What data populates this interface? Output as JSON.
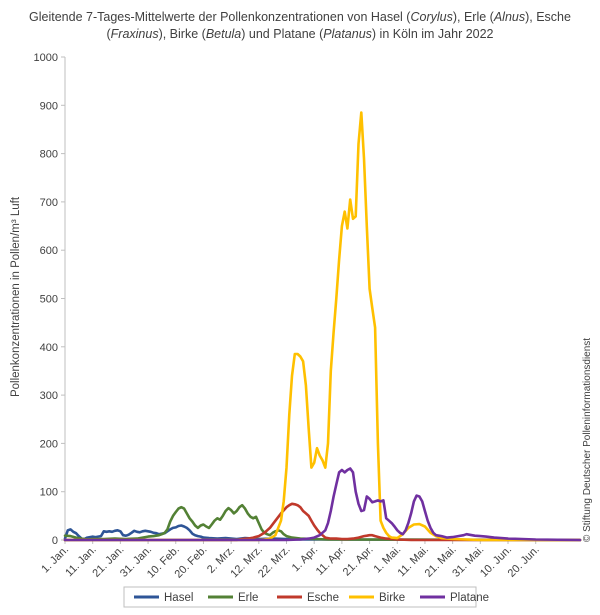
{
  "chart_data": {
    "type": "line",
    "title_lines": [
      [
        {
          "t": "Gleitende 7-Tages-Mittelwerte der Pollenkonzentrationen von Hasel (",
          "i": false
        },
        {
          "t": "Corylus",
          "i": true
        },
        {
          "t": "), Erle (",
          "i": false
        },
        {
          "t": "Alnus",
          "i": true
        },
        {
          "t": "), Esche",
          "i": false
        }
      ],
      [
        {
          "t": "(",
          "i": false
        },
        {
          "t": "Fraxinus",
          "i": true
        },
        {
          "t": "), Birke (",
          "i": false
        },
        {
          "t": "Betula",
          "i": true
        },
        {
          "t": ") und Platane (",
          "i": false
        },
        {
          "t": "Platanus",
          "i": true
        },
        {
          "t": ") in Köln im Jahr 2022",
          "i": false
        }
      ]
    ],
    "ylabel": "Pollenkonzentrationen in Pollen/m³ Luft",
    "ylim": [
      0,
      1000
    ],
    "yticks": [
      0,
      100,
      200,
      300,
      400,
      500,
      600,
      700,
      800,
      900,
      1000
    ],
    "xlim": [
      0,
      186
    ],
    "xticks": [
      {
        "day": 0,
        "label": "1. Jan."
      },
      {
        "day": 10,
        "label": "11. Jan."
      },
      {
        "day": 20,
        "label": "21. Jan."
      },
      {
        "day": 30,
        "label": "31. Jan."
      },
      {
        "day": 40,
        "label": "10. Feb."
      },
      {
        "day": 50,
        "label": "20. Feb."
      },
      {
        "day": 60,
        "label": "2. Mrz."
      },
      {
        "day": 70,
        "label": "12. Mrz."
      },
      {
        "day": 80,
        "label": "22. Mrz."
      },
      {
        "day": 90,
        "label": "1. Apr."
      },
      {
        "day": 100,
        "label": "11. Apr."
      },
      {
        "day": 110,
        "label": "21. Apr."
      },
      {
        "day": 120,
        "label": "1. Mai."
      },
      {
        "day": 130,
        "label": "11. Mai."
      },
      {
        "day": 140,
        "label": "21. Mai."
      },
      {
        "day": 150,
        "label": "31. Mai."
      },
      {
        "day": 160,
        "label": "10. Jun."
      },
      {
        "day": 170,
        "label": "20. Jun."
      }
    ],
    "grid": false,
    "legend_position": "bottom",
    "copyright": "© Stiftung Deutscher Polleninformationsdienst",
    "series": [
      {
        "name": "Hasel",
        "color": "#2E5597",
        "points": [
          [
            0,
            3
          ],
          [
            1,
            20
          ],
          [
            2,
            22
          ],
          [
            3,
            17
          ],
          [
            4,
            14
          ],
          [
            5,
            8
          ],
          [
            6,
            3
          ],
          [
            7,
            2
          ],
          [
            8,
            5
          ],
          [
            9,
            6
          ],
          [
            10,
            7
          ],
          [
            11,
            6
          ],
          [
            12,
            7
          ],
          [
            13,
            8
          ],
          [
            14,
            18
          ],
          [
            15,
            17
          ],
          [
            16,
            18
          ],
          [
            17,
            17
          ],
          [
            18,
            19
          ],
          [
            19,
            20
          ],
          [
            20,
            18
          ],
          [
            21,
            10
          ],
          [
            22,
            9
          ],
          [
            23,
            11
          ],
          [
            24,
            15
          ],
          [
            25,
            19
          ],
          [
            26,
            17
          ],
          [
            27,
            16
          ],
          [
            28,
            18
          ],
          [
            29,
            19
          ],
          [
            30,
            18
          ],
          [
            31,
            17
          ],
          [
            32,
            15
          ],
          [
            33,
            14
          ],
          [
            34,
            12
          ],
          [
            35,
            13
          ],
          [
            36,
            14
          ],
          [
            37,
            18
          ],
          [
            38,
            22
          ],
          [
            39,
            25
          ],
          [
            40,
            26
          ],
          [
            41,
            29
          ],
          [
            42,
            30
          ],
          [
            43,
            28
          ],
          [
            44,
            25
          ],
          [
            45,
            20
          ],
          [
            46,
            13
          ],
          [
            47,
            10
          ],
          [
            48,
            8
          ],
          [
            49,
            7
          ],
          [
            50,
            5
          ],
          [
            52,
            4
          ],
          [
            55,
            3
          ],
          [
            58,
            4
          ],
          [
            60,
            3
          ],
          [
            62,
            2
          ],
          [
            65,
            4
          ],
          [
            68,
            3
          ],
          [
            70,
            2
          ],
          [
            75,
            3
          ],
          [
            80,
            2
          ],
          [
            85,
            1
          ],
          [
            90,
            1
          ],
          [
            186,
            0
          ]
        ]
      },
      {
        "name": "Erle",
        "color": "#538135",
        "points": [
          [
            0,
            9
          ],
          [
            2,
            8
          ],
          [
            4,
            5
          ],
          [
            6,
            3
          ],
          [
            8,
            1
          ],
          [
            10,
            2
          ],
          [
            14,
            2
          ],
          [
            18,
            3
          ],
          [
            22,
            2
          ],
          [
            26,
            3
          ],
          [
            28,
            5
          ],
          [
            30,
            7
          ],
          [
            32,
            8
          ],
          [
            34,
            10
          ],
          [
            35,
            12
          ],
          [
            36,
            15
          ],
          [
            37,
            22
          ],
          [
            38,
            38
          ],
          [
            39,
            50
          ],
          [
            40,
            58
          ],
          [
            41,
            65
          ],
          [
            42,
            68
          ],
          [
            43,
            65
          ],
          [
            44,
            55
          ],
          [
            45,
            45
          ],
          [
            46,
            38
          ],
          [
            47,
            30
          ],
          [
            48,
            25
          ],
          [
            49,
            30
          ],
          [
            50,
            32
          ],
          [
            51,
            28
          ],
          [
            52,
            25
          ],
          [
            53,
            32
          ],
          [
            54,
            40
          ],
          [
            55,
            45
          ],
          [
            56,
            42
          ],
          [
            57,
            50
          ],
          [
            58,
            60
          ],
          [
            59,
            66
          ],
          [
            60,
            62
          ],
          [
            61,
            55
          ],
          [
            62,
            60
          ],
          [
            63,
            68
          ],
          [
            64,
            72
          ],
          [
            65,
            65
          ],
          [
            66,
            55
          ],
          [
            67,
            48
          ],
          [
            68,
            45
          ],
          [
            69,
            48
          ],
          [
            70,
            35
          ],
          [
            71,
            22
          ],
          [
            72,
            15
          ],
          [
            73,
            12
          ],
          [
            74,
            10
          ],
          [
            75,
            15
          ],
          [
            76,
            18
          ],
          [
            77,
            20
          ],
          [
            78,
            18
          ],
          [
            79,
            12
          ],
          [
            80,
            8
          ],
          [
            82,
            5
          ],
          [
            85,
            3
          ],
          [
            90,
            2
          ],
          [
            95,
            1
          ],
          [
            186,
            0
          ]
        ]
      },
      {
        "name": "Esche",
        "color": "#C0392B",
        "points": [
          [
            0,
            0
          ],
          [
            62,
            0
          ],
          [
            64,
            2
          ],
          [
            66,
            3
          ],
          [
            68,
            5
          ],
          [
            70,
            8
          ],
          [
            72,
            15
          ],
          [
            74,
            25
          ],
          [
            76,
            40
          ],
          [
            78,
            55
          ],
          [
            80,
            68
          ],
          [
            81,
            72
          ],
          [
            82,
            75
          ],
          [
            83,
            74
          ],
          [
            84,
            72
          ],
          [
            85,
            68
          ],
          [
            86,
            60
          ],
          [
            87,
            55
          ],
          [
            88,
            50
          ],
          [
            89,
            40
          ],
          [
            90,
            30
          ],
          [
            91,
            22
          ],
          [
            92,
            15
          ],
          [
            93,
            10
          ],
          [
            94,
            5
          ],
          [
            96,
            3
          ],
          [
            98,
            3
          ],
          [
            100,
            2
          ],
          [
            102,
            2
          ],
          [
            104,
            3
          ],
          [
            106,
            5
          ],
          [
            108,
            8
          ],
          [
            109,
            9
          ],
          [
            110,
            10
          ],
          [
            111,
            10
          ],
          [
            112,
            8
          ],
          [
            114,
            5
          ],
          [
            116,
            3
          ],
          [
            118,
            2
          ],
          [
            120,
            1
          ],
          [
            125,
            0
          ],
          [
            186,
            0
          ]
        ]
      },
      {
        "name": "Birke",
        "color": "#FFC000",
        "points": [
          [
            0,
            0
          ],
          [
            70,
            0
          ],
          [
            72,
            1
          ],
          [
            74,
            3
          ],
          [
            76,
            10
          ],
          [
            78,
            40
          ],
          [
            79,
            80
          ],
          [
            80,
            150
          ],
          [
            81,
            260
          ],
          [
            82,
            340
          ],
          [
            83,
            385
          ],
          [
            84,
            385
          ],
          [
            85,
            380
          ],
          [
            86,
            370
          ],
          [
            87,
            320
          ],
          [
            88,
            230
          ],
          [
            89,
            150
          ],
          [
            90,
            160
          ],
          [
            91,
            190
          ],
          [
            92,
            175
          ],
          [
            93,
            165
          ],
          [
            94,
            150
          ],
          [
            95,
            200
          ],
          [
            96,
            350
          ],
          [
            97,
            430
          ],
          [
            98,
            500
          ],
          [
            99,
            580
          ],
          [
            100,
            650
          ],
          [
            101,
            680
          ],
          [
            102,
            645
          ],
          [
            103,
            705
          ],
          [
            104,
            665
          ],
          [
            105,
            670
          ],
          [
            106,
            820
          ],
          [
            107,
            885
          ],
          [
            108,
            790
          ],
          [
            109,
            650
          ],
          [
            110,
            520
          ],
          [
            111,
            480
          ],
          [
            112,
            440
          ],
          [
            113,
            200
          ],
          [
            114,
            40
          ],
          [
            115,
            25
          ],
          [
            116,
            15
          ],
          [
            117,
            8
          ],
          [
            118,
            5
          ],
          [
            120,
            4
          ],
          [
            122,
            12
          ],
          [
            124,
            25
          ],
          [
            126,
            32
          ],
          [
            128,
            33
          ],
          [
            130,
            28
          ],
          [
            132,
            15
          ],
          [
            134,
            8
          ],
          [
            136,
            4
          ],
          [
            140,
            2
          ],
          [
            145,
            1
          ],
          [
            150,
            0
          ],
          [
            186,
            0
          ]
        ]
      },
      {
        "name": "Platane",
        "color": "#7030A0",
        "points": [
          [
            0,
            0
          ],
          [
            80,
            0
          ],
          [
            85,
            1
          ],
          [
            88,
            3
          ],
          [
            90,
            5
          ],
          [
            92,
            10
          ],
          [
            94,
            20
          ],
          [
            95,
            35
          ],
          [
            96,
            60
          ],
          [
            97,
            90
          ],
          [
            98,
            115
          ],
          [
            99,
            140
          ],
          [
            100,
            145
          ],
          [
            101,
            140
          ],
          [
            102,
            145
          ],
          [
            103,
            148
          ],
          [
            104,
            140
          ],
          [
            105,
            100
          ],
          [
            106,
            75
          ],
          [
            107,
            60
          ],
          [
            108,
            62
          ],
          [
            109,
            90
          ],
          [
            110,
            85
          ],
          [
            111,
            78
          ],
          [
            112,
            80
          ],
          [
            113,
            82
          ],
          [
            114,
            80
          ],
          [
            115,
            82
          ],
          [
            116,
            45
          ],
          [
            117,
            40
          ],
          [
            118,
            35
          ],
          [
            119,
            28
          ],
          [
            120,
            20
          ],
          [
            121,
            15
          ],
          [
            122,
            12
          ],
          [
            123,
            20
          ],
          [
            124,
            35
          ],
          [
            125,
            55
          ],
          [
            126,
            80
          ],
          [
            127,
            92
          ],
          [
            128,
            90
          ],
          [
            129,
            80
          ],
          [
            130,
            60
          ],
          [
            131,
            40
          ],
          [
            132,
            25
          ],
          [
            133,
            15
          ],
          [
            134,
            10
          ],
          [
            136,
            8
          ],
          [
            138,
            5
          ],
          [
            140,
            6
          ],
          [
            142,
            8
          ],
          [
            144,
            10
          ],
          [
            145,
            12
          ],
          [
            146,
            11
          ],
          [
            148,
            9
          ],
          [
            150,
            8
          ],
          [
            152,
            7
          ],
          [
            155,
            5
          ],
          [
            160,
            3
          ],
          [
            165,
            2
          ],
          [
            170,
            1
          ],
          [
            186,
            0
          ]
        ]
      }
    ]
  }
}
